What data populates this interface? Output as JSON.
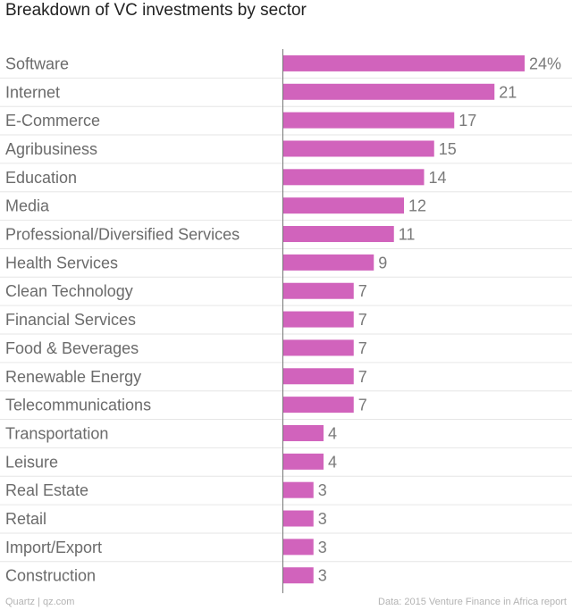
{
  "chart_data": {
    "type": "bar",
    "orientation": "horizontal",
    "title": "Breakdown of VC investments by sector",
    "categories": [
      "Software",
      "Internet",
      "E-Commerce",
      "Agribusiness",
      "Education",
      "Media",
      "Professional/Diversified Services",
      "Health Services",
      "Clean Technology",
      "Financial Services",
      "Food & Beverages",
      "Renewable Energy",
      "Telecommunications",
      "Transportation",
      "Leisure",
      "Real Estate",
      "Retail",
      "Import/Export",
      "Construction"
    ],
    "values": [
      24,
      21,
      17,
      15,
      14,
      12,
      11,
      9,
      7,
      7,
      7,
      7,
      7,
      4,
      4,
      3,
      3,
      3,
      3
    ],
    "value_labels": [
      "24%",
      "21",
      "17",
      "15",
      "14",
      "12",
      "11",
      "9",
      "7",
      "7",
      "7",
      "7",
      "7",
      "4",
      "4",
      "3",
      "3",
      "3",
      "3"
    ],
    "xlim": [
      0,
      24
    ],
    "xlabel": "",
    "ylabel": "",
    "grid": true,
    "bar_color": "#d163bc"
  },
  "footer": {
    "source_left": "Quartz | qz.com",
    "source_right": "Data: 2015 Venture Finance in Africa report"
  },
  "colors": {
    "bar": "#d163bc",
    "axis": "#777777",
    "grid": "#e6e6e6",
    "label": "#6b6b6b",
    "value": "#7a7a7a"
  }
}
